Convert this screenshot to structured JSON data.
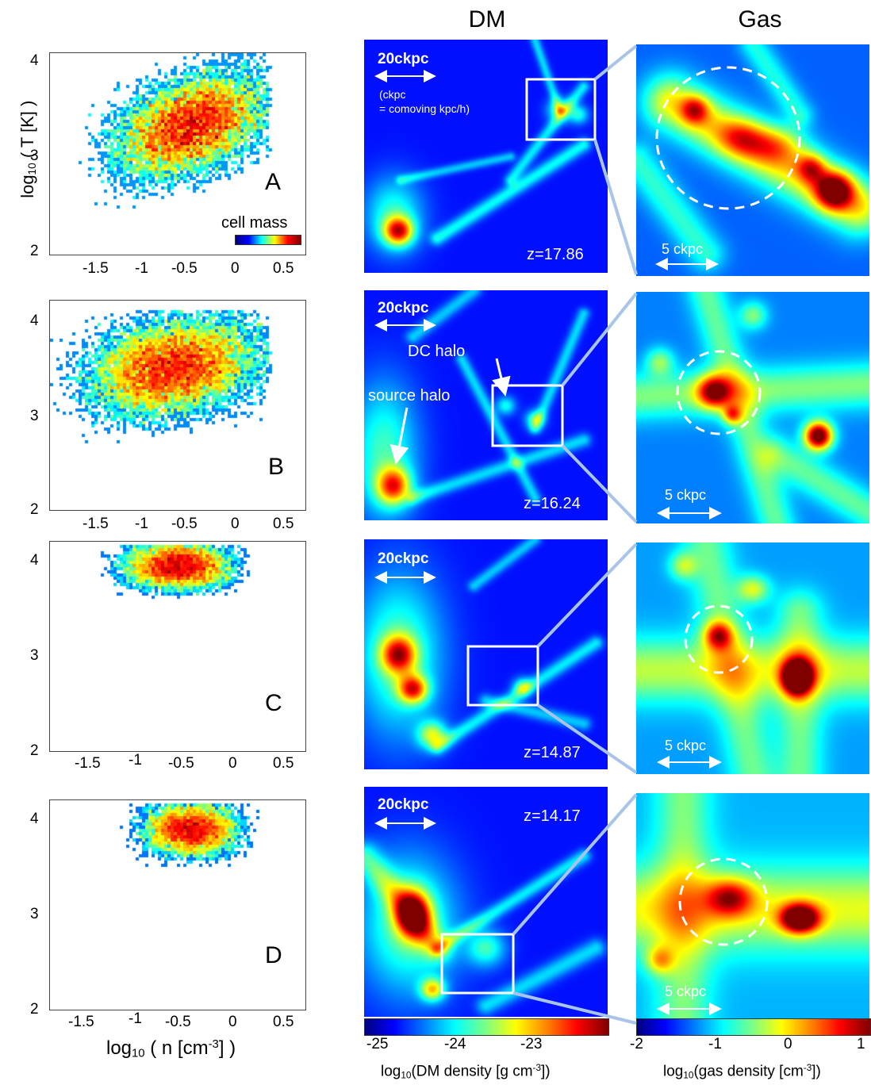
{
  "columns": {
    "dm_title": "DM",
    "gas_title": "Gas"
  },
  "phase_axes": {
    "ylabel_prefix": "log",
    "ylabel_sub": "10",
    "ylabel_rest": " ( T [K] )",
    "xlabel_prefix": "log",
    "xlabel_sub": "10",
    "xlabel_rest": " ( n [cm",
    "xlabel_sup": "-3",
    "xlabel_end": "] )",
    "yticks": [
      "4",
      "3",
      "2"
    ],
    "xticks": [
      "-1.5",
      "-1",
      "-0.5",
      "0",
      "0.5"
    ]
  },
  "cell_mass_label": "cell mass",
  "rows": [
    {
      "letter": "A",
      "redshift": "z=17.86"
    },
    {
      "letter": "B",
      "redshift": "z=16.24"
    },
    {
      "letter": "C",
      "redshift": "z=14.87"
    },
    {
      "letter": "D",
      "redshift": "z=14.17"
    }
  ],
  "dm_scale": "20ckpc",
  "ckpc_note_line1": "(ckpc",
  "ckpc_note_line2": "= comoving kpc/h)",
  "gas_scale": "5 ckpc",
  "annotations": {
    "dc_halo": "DC halo",
    "source_halo": "source halo"
  },
  "dm_colorbar": {
    "ticks": [
      "-25",
      "-24",
      "-23"
    ],
    "label_prefix": "log",
    "label_sub": "10",
    "label_rest": "(DM density [g cm",
    "label_sup": "-3",
    "label_end": "])"
  },
  "gas_colorbar": {
    "ticks": [
      "-2",
      "-1",
      "0",
      "1"
    ],
    "label_prefix": "log",
    "label_sub": "10",
    "label_rest": "(gas density [cm",
    "label_sup": "-3",
    "label_end": "])"
  },
  "colors": {
    "jet_dark": "#00007f",
    "zoom_line": "#a8c4e8"
  }
}
